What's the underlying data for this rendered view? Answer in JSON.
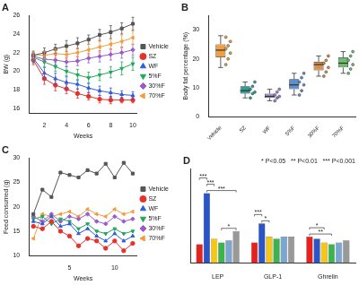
{
  "chart_data": [
    {
      "type": "line",
      "title": "A",
      "x_label": "Weeks",
      "y_label": "BW (g)",
      "x": [
        1,
        2,
        3,
        4,
        5,
        6,
        7,
        8,
        9,
        10
      ],
      "xlim": [
        0.6,
        10.4
      ],
      "xticks": [
        2,
        4,
        6,
        8,
        10
      ],
      "ylim": [
        15.5,
        26
      ],
      "yticks": [
        16,
        18,
        20,
        22,
        24,
        26
      ],
      "grid": false,
      "legend": "right",
      "series": [
        {
          "name": "Vehicle",
          "color": "#555555",
          "marker": "square",
          "values": [
            21.7,
            22.0,
            22.4,
            22.7,
            23.0,
            23.4,
            23.9,
            24.2,
            24.6,
            25.1
          ],
          "errors": [
            0.4,
            0.5,
            0.5,
            0.6,
            0.6,
            0.5,
            0.6,
            0.7,
            0.6,
            0.7
          ]
        },
        {
          "name": "SZ",
          "color": "#e8302a",
          "marker": "circle",
          "values": [
            21.2,
            19.2,
            18.5,
            18.1,
            17.6,
            17.3,
            17.0,
            16.9,
            16.9,
            16.9
          ],
          "errors": [
            0.5,
            0.6,
            0.6,
            0.5,
            0.5,
            0.4,
            0.4,
            0.4,
            0.3,
            0.3
          ]
        },
        {
          "name": "WF",
          "color": "#2f5de0",
          "marker": "triangle",
          "values": [
            21.4,
            19.8,
            19.2,
            18.8,
            18.6,
            18.2,
            17.9,
            17.7,
            17.5,
            17.4
          ],
          "errors": [
            0.5,
            0.6,
            0.6,
            0.6,
            0.5,
            0.5,
            0.5,
            0.5,
            0.4,
            0.4
          ]
        },
        {
          "name": "5%F",
          "color": "#1fa85c",
          "marker": "triangle_down",
          "values": [
            21.5,
            21.0,
            20.5,
            20.0,
            19.6,
            19.3,
            19.6,
            19.9,
            20.3,
            20.8
          ],
          "errors": [
            0.4,
            0.5,
            0.5,
            0.5,
            0.6,
            0.6,
            0.6,
            0.6,
            0.7,
            0.7
          ]
        },
        {
          "name": "30%F",
          "color": "#9b59d0",
          "marker": "diamond",
          "values": [
            21.6,
            21.3,
            21.2,
            21.0,
            21.1,
            21.4,
            21.6,
            21.8,
            22.0,
            22.3
          ],
          "errors": [
            0.4,
            0.4,
            0.5,
            0.5,
            0.5,
            0.5,
            0.6,
            0.6,
            0.6,
            0.6
          ]
        },
        {
          "name": "70%F",
          "color": "#f39c3c",
          "marker": "triangle_left",
          "values": [
            21.8,
            21.7,
            21.9,
            21.8,
            22.0,
            22.3,
            22.6,
            22.9,
            23.2,
            23.6
          ],
          "errors": [
            0.4,
            0.4,
            0.5,
            0.5,
            0.5,
            0.6,
            0.6,
            0.6,
            0.7,
            0.7
          ]
        }
      ]
    },
    {
      "type": "box",
      "title": "B",
      "y_label": "Body fat percentage (%)",
      "categories": [
        "Vehicle",
        "SZ",
        "WF",
        "5%F",
        "30%F",
        "70%F"
      ],
      "colors": [
        "#f0a040",
        "#2aa198",
        "#9b7fd0",
        "#5b8fd0",
        "#d9904a",
        "#6dbf6d"
      ],
      "ylim": [
        0,
        35
      ],
      "yticks": [
        0,
        10,
        20,
        30
      ],
      "grid": false,
      "boxes": [
        {
          "min": 17,
          "q1": 20.5,
          "median": 23,
          "q3": 25,
          "max": 28
        },
        {
          "min": 6.5,
          "q1": 8,
          "median": 9,
          "q3": 10.5,
          "max": 12
        },
        {
          "min": 5.5,
          "q1": 6.5,
          "median": 7,
          "q3": 8,
          "max": 9.5
        },
        {
          "min": 7.5,
          "q1": 9.5,
          "median": 11,
          "q3": 13,
          "max": 15
        },
        {
          "min": 14,
          "q1": 16,
          "median": 18,
          "q3": 19,
          "max": 21
        },
        {
          "min": 15,
          "q1": 17,
          "median": 18.5,
          "q3": 20.5,
          "max": 22.5
        }
      ],
      "points": [
        [
          18,
          20,
          22,
          23.5,
          24.5,
          26,
          27.5
        ],
        [
          6.5,
          8,
          8.5,
          9.5,
          10.5,
          12
        ],
        [
          5.5,
          6.5,
          7,
          7.5,
          8.5,
          9.5
        ],
        [
          7.5,
          9,
          11,
          12,
          13.5,
          15
        ],
        [
          14,
          15.5,
          17,
          18.5,
          19.5,
          21
        ],
        [
          15,
          16.5,
          18,
          19.5,
          21,
          22.5
        ]
      ]
    },
    {
      "type": "line",
      "title": "C",
      "x_label": "Weeks",
      "y_label": "Feed consumed (g)",
      "x": [
        1,
        2,
        3,
        4,
        5,
        6,
        7,
        8,
        9,
        10,
        11,
        12
      ],
      "xlim": [
        0.5,
        12.5
      ],
      "xticks": [
        5,
        10
      ],
      "ylim": [
        10,
        30
      ],
      "yticks": [
        10,
        15,
        20,
        25,
        30
      ],
      "grid": false,
      "legend": "right",
      "series": [
        {
          "name": "Vehicle",
          "color": "#555555",
          "marker": "square",
          "values": [
            18.5,
            23.5,
            22.0,
            27.0,
            26.5,
            26.0,
            27.5,
            26.8,
            28.8,
            26.0,
            29.0,
            26.8
          ]
        },
        {
          "name": "SZ",
          "color": "#e8302a",
          "marker": "circle",
          "values": [
            16.0,
            15.5,
            17.0,
            15.0,
            14.0,
            12.0,
            13.5,
            13.0,
            11.5,
            13.0,
            11.0,
            12.5
          ]
        },
        {
          "name": "WF",
          "color": "#2f5de0",
          "marker": "triangle",
          "values": [
            17.0,
            16.5,
            18.0,
            16.0,
            16.5,
            14.5,
            15.5,
            14.0,
            13.0,
            14.5,
            13.0,
            14.0
          ]
        },
        {
          "name": "5%F",
          "color": "#1fa85c",
          "marker": "triangle_down",
          "values": [
            17.5,
            18.0,
            16.5,
            17.5,
            17.0,
            15.5,
            16.5,
            15.0,
            14.5,
            15.5,
            14.5,
            15.0
          ]
        },
        {
          "name": "30%F",
          "color": "#9b59d0",
          "marker": "diamond",
          "values": [
            18.0,
            17.0,
            18.5,
            17.0,
            18.0,
            17.5,
            18.5,
            17.0,
            16.5,
            18.0,
            17.0,
            17.5
          ]
        },
        {
          "name": "70%F",
          "color": "#f39c3c",
          "marker": "triangle_left",
          "values": [
            13.5,
            18.5,
            18.0,
            18.5,
            19.0,
            18.0,
            19.5,
            18.5,
            18.0,
            19.5,
            18.5,
            19.0
          ]
        }
      ]
    },
    {
      "type": "bar",
      "title": "D",
      "categories": [
        "LEP",
        "GLP-1",
        "Ghrelin"
      ],
      "ylim": [
        0,
        0.5
      ],
      "tick_labels": "x",
      "grid": false,
      "annotations": [
        "* P<0.05",
        "** P<0.01",
        "*** P<0.001"
      ],
      "series": [
        {
          "name": "Vehicle",
          "color": "#e8211c",
          "values": [
            0.1,
            0.11,
            0.14
          ]
        },
        {
          "name": "SZ",
          "color": "#2a55c8",
          "values": [
            0.37,
            0.21,
            0.13
          ]
        },
        {
          "name": "WF",
          "color": "#f5c518",
          "values": [
            0.13,
            0.14,
            0.11
          ]
        },
        {
          "name": "5%F",
          "color": "#3cb44b",
          "values": [
            0.11,
            0.13,
            0.1
          ]
        },
        {
          "name": "30%F",
          "color": "#79a6d2",
          "values": [
            0.12,
            0.14,
            0.11
          ]
        },
        {
          "name": "70%F",
          "color": "#999999",
          "values": [
            0.17,
            0.14,
            0.12
          ]
        }
      ],
      "comparisons": [
        {
          "category": "LEP",
          "from": "5%F",
          "to": "70%F",
          "label": "*"
        },
        {
          "category": "LEP",
          "from": "SZ",
          "to": "70%F",
          "label": "***"
        },
        {
          "category": "LEP",
          "from": "SZ",
          "to": "WF",
          "label": "***"
        },
        {
          "category": "LEP",
          "from": "Vehicle",
          "to": "SZ",
          "label": "***"
        },
        {
          "category": "GLP-1",
          "from": "SZ",
          "to": "WF",
          "label": "*"
        },
        {
          "category": "GLP-1",
          "from": "Vehicle",
          "to": "SZ",
          "label": "***"
        },
        {
          "category": "Ghrelin",
          "from": "Vehicle",
          "to": "5%F",
          "label": "**"
        },
        {
          "category": "Ghrelin",
          "from": "Vehicle",
          "to": "WF",
          "label": "*"
        }
      ]
    }
  ]
}
